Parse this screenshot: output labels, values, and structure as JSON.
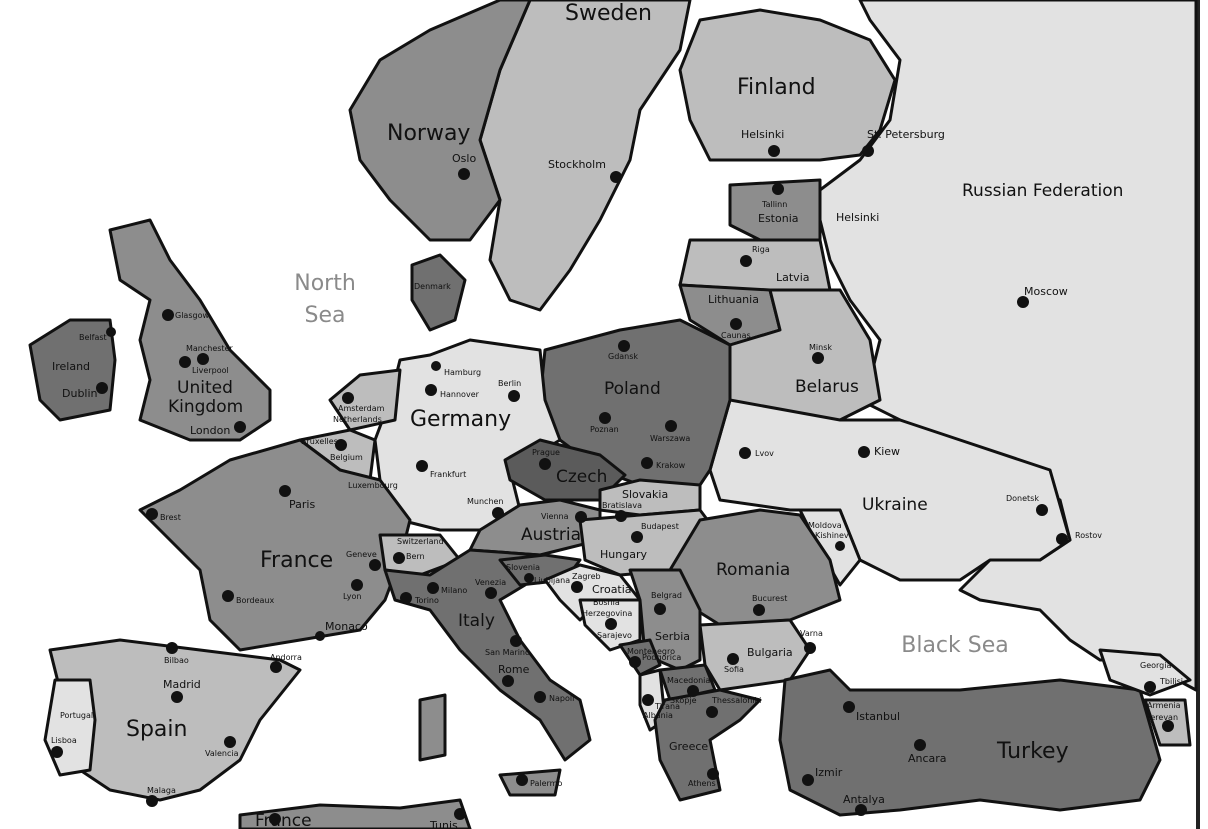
{
  "map": {
    "seas": {
      "north_sea_1": "North",
      "north_sea_2": "Sea",
      "black_sea": "Black Sea"
    },
    "countries": {
      "sweden": "Sweden",
      "finland": "Finland",
      "norway": "Norway",
      "russia": "Russian Federation",
      "estonia": "Estonia",
      "latvia": "Latvia",
      "lithuania": "Lithuania",
      "denmark": "Denmark",
      "ireland": "Ireland",
      "uk_1": "United",
      "uk_2": "Kingdom",
      "netherlands": "Netherlands",
      "belgium": "Belgium",
      "luxembourg": "Luxembourg",
      "germany": "Germany",
      "poland": "Poland",
      "belarus": "Belarus",
      "czech": "Czech",
      "slovakia": "Slovakia",
      "austria": "Austria",
      "hungary": "Hungary",
      "ukraine": "Ukraine",
      "moldova": "Moldova",
      "romania": "Romania",
      "france": "France",
      "switzerland": "Switzerland",
      "italy": "Italy",
      "slovenia": "Slovenia",
      "croatia": "Croatia",
      "bosnia_1": "Bosnia",
      "bosnia_2": "Herzegovina",
      "serbia": "Serbia",
      "montenegro": "Montenegro",
      "albania": "Albania",
      "macedonia": "Macedonia",
      "bulgaria": "Bulgaria",
      "greece": "Greece",
      "turkey": "Turkey",
      "georgia": "Georgia",
      "armenia": "Armenia",
      "spain": "Spain",
      "portugal": "Portugal",
      "andorra": "Andorra",
      "monaco": "Monaco",
      "san_marino": "San Marino",
      "france_south": "France",
      "tunis": "Tunis"
    },
    "cities": {
      "helsinki": "Helsinki",
      "st_petersburg": "St. Petersburg",
      "helsinki_2": "Helsinki",
      "stockholm": "Stockholm",
      "oslo": "Oslo",
      "tallinn": "Tallinn",
      "riga": "Riga",
      "caunas": "Caunas",
      "minsk": "Minsk",
      "moscow": "Moscow",
      "gdansk": "Gdansk",
      "poznan": "Poznan",
      "warszawa": "Warszawa",
      "krakow": "Krakow",
      "lvov": "Lvov",
      "kiew": "Kiew",
      "donetsk": "Donetsk",
      "rostov": "Rostov",
      "kishinev": "Kishinev",
      "hamburg": "Hamburg",
      "hannover": "Hannover",
      "berlin": "Berlin",
      "frankfurt": "Frankfurt",
      "munchen": "Munchen",
      "prague": "Prague",
      "bratislava": "Bratislava",
      "vienna": "Vienna",
      "budapest": "Budapest",
      "bucurest": "Bucurest",
      "glasgow": "Glasgow",
      "belfast": "Belfast",
      "manchester": "Manchester",
      "liverpool": "Liverpool",
      "dublin": "Dublin",
      "london": "London",
      "amsterdam": "Amsterdam",
      "bruxelles": "Bruxelles",
      "paris": "Paris",
      "brest": "Brest",
      "bordeaux": "Bordeaux",
      "lyon": "Lyon",
      "geneve": "Geneve",
      "bern": "Bern",
      "milano": "Milano",
      "torino": "Torino",
      "venezia": "Venezia",
      "ljubljana": "Ljubljana",
      "zagreb": "Zagreb",
      "sarajevo": "Sarajevo",
      "belgrad": "Belgrad",
      "podgorica": "Podgorica",
      "tirana": "Tirana",
      "skopje": "Skopje",
      "rome": "Rome",
      "napoli": "Napoli",
      "palermo": "Palermo",
      "sofia": "Sofia",
      "varna": "Varna",
      "thessaloniki": "Thessaloniki",
      "athens": "Athens",
      "istanbul": "Istanbul",
      "ancara": "Ancara",
      "izmir": "Izmir",
      "antalya": "Antalya",
      "tbilisi": "Tbilisi",
      "jerevan": "Jerevan",
      "bilbao": "Bilbao",
      "madrid": "Madrid",
      "lisboa": "Lisboa",
      "valencia": "Valencia",
      "malaga": "Malaga"
    }
  }
}
